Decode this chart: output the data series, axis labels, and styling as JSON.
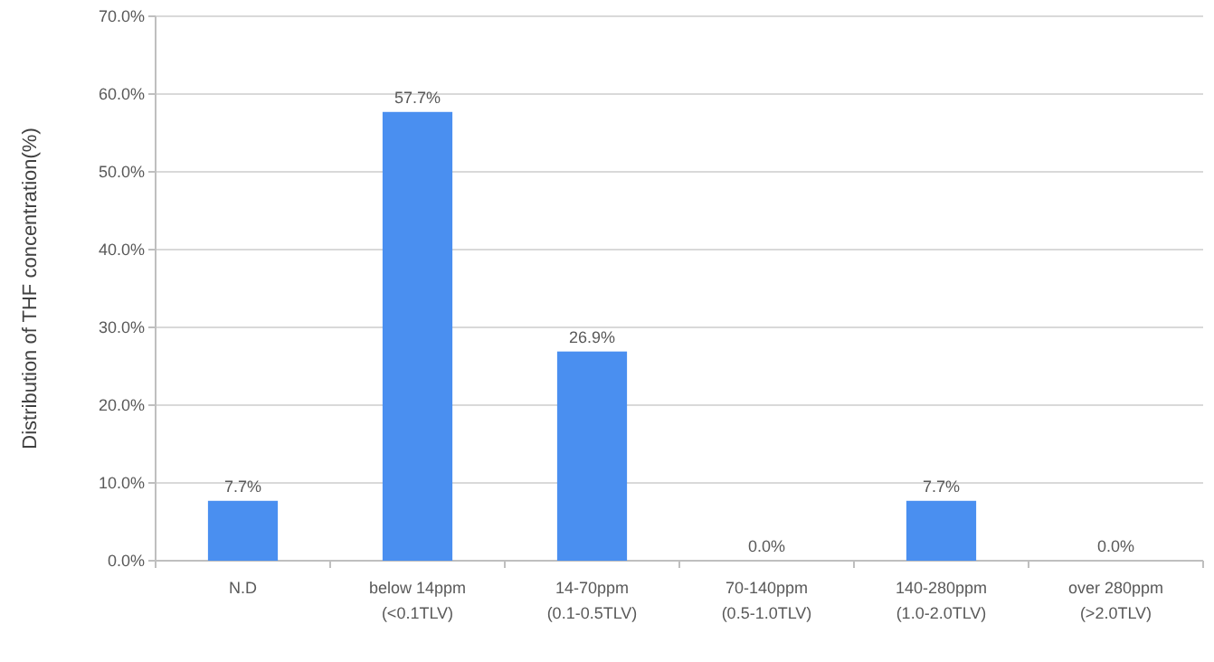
{
  "chart_data": {
    "type": "bar",
    "ylabel": "Distribution of  THF concentration(%)",
    "categories": [
      "N.D",
      "below 14ppm\n(<0.1TLV)",
      "14-70ppm\n(0.1-0.5TLV)",
      "70-140ppm\n(0.5-1.0TLV)",
      "140-280ppm\n(1.0-2.0TLV)",
      "over 280ppm\n(>2.0TLV)"
    ],
    "values": [
      7.7,
      57.7,
      26.9,
      0,
      7.7,
      0
    ],
    "value_labels": [
      "7.7%",
      "57.7%",
      "26.9%",
      "0.0%",
      "7.7%",
      "0.0%"
    ],
    "color": "#4a8ff0",
    "ylim": [
      0,
      70
    ],
    "yticks": [
      {
        "value": 0,
        "label": "0.0%"
      },
      {
        "value": 10,
        "label": "10.0%"
      },
      {
        "value": 20,
        "label": "20.0%"
      },
      {
        "value": 30,
        "label": "30.0%"
      },
      {
        "value": 40,
        "label": "40.0%"
      },
      {
        "value": 50,
        "label": "50.0%"
      },
      {
        "value": 60,
        "label": "60.0%"
      },
      {
        "value": 70,
        "label": "70.0%"
      }
    ],
    "grid": true
  }
}
